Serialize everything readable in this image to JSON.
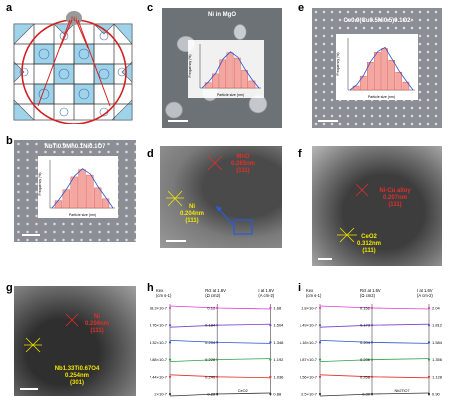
{
  "panels": {
    "a": {
      "letter": "a",
      "label": "Ni"
    },
    "b": {
      "letter": "b",
      "title": "NbTi0.9Mn0.1Ni0.1O7",
      "hist": {
        "ylabel": "Frequency (%)",
        "xlabel": "Particle size (nm)",
        "yticks": [
          "0",
          "5",
          "10",
          "15",
          "20",
          "25",
          "30"
        ],
        "xticks": [
          "5",
          "10",
          "15",
          "20",
          "25",
          "30"
        ],
        "values": [
          4,
          10,
          17,
          21,
          18,
          11,
          5
        ]
      }
    },
    "c": {
      "letter": "c",
      "title": "Ni in MgO",
      "hist": {
        "ylabel": "Frequency (%)",
        "xlabel": "Particle size (nm)",
        "values": [
          3,
          8,
          16,
          20,
          17,
          10,
          4
        ]
      }
    },
    "d": {
      "letter": "d",
      "label1": "MnO\n0.265nm\n(111)",
      "label2": "Ni\n0.204nm\n(111)"
    },
    "e": {
      "letter": "e",
      "title": "Ce0.9(Cu0.5Ni0.5)0.1O2",
      "hist": {
        "ylabel": "Frequency (%)",
        "xlabel": "Particle size (nm)",
        "values": [
          2,
          7,
          14,
          19,
          21,
          15,
          9,
          4
        ]
      }
    },
    "f": {
      "letter": "f",
      "label1": "Ni-Cu alloy\n0.207nm\n(111)",
      "label2": "CeO2\n0.312nm\n(111)"
    },
    "g": {
      "letter": "g",
      "label1": "Ni\n0.204nm\n(111)",
      "label2": "Nb1.33Ti0.67O4\n0.254nm\n(301)"
    },
    "h": {
      "letter": "h",
      "col1_header": "Kex\n(cm s-1)",
      "col2_header": "Rct at 1.6V\n(Ω cm2)",
      "col3_header": "I at 1.6V\n(A cm-2)",
      "col1": [
        "68.3×10-7",
        "23.76×10-7",
        "18.32×10-7",
        "12.88×10-7",
        "7.44×10-7",
        "2×10-7"
      ],
      "col2": [
        "0.12",
        "0.184",
        "0.204",
        "0.228",
        "0.240",
        "0.28"
      ],
      "col3": [
        "1.68",
        "1.504",
        "1.348",
        "1.192",
        "1.036",
        "0.88"
      ],
      "bottom_label": "CeO2"
    },
    "i": {
      "letter": "i",
      "col1_header": "Kex\n(cm s-1)",
      "col2_header": "Rct at 1.6V\n(Ω cm2)",
      "col3_header": "I at 1.6V\n(A cm-2)",
      "col1": [
        "1.8×10-7",
        "1.49×10-7",
        "1.18×10-7",
        "0.87×10-7",
        "0.56×10-7",
        "2.5×10-7"
      ],
      "col2": [
        "0.152",
        "0.173",
        "0.204",
        "0.236",
        "0.268",
        "0.30"
      ],
      "col3": [
        "2.04",
        "1.812",
        "1.584",
        "1.356",
        "1.128",
        "0.90"
      ],
      "bottom_label": "Nb2TiO7"
    }
  }
}
